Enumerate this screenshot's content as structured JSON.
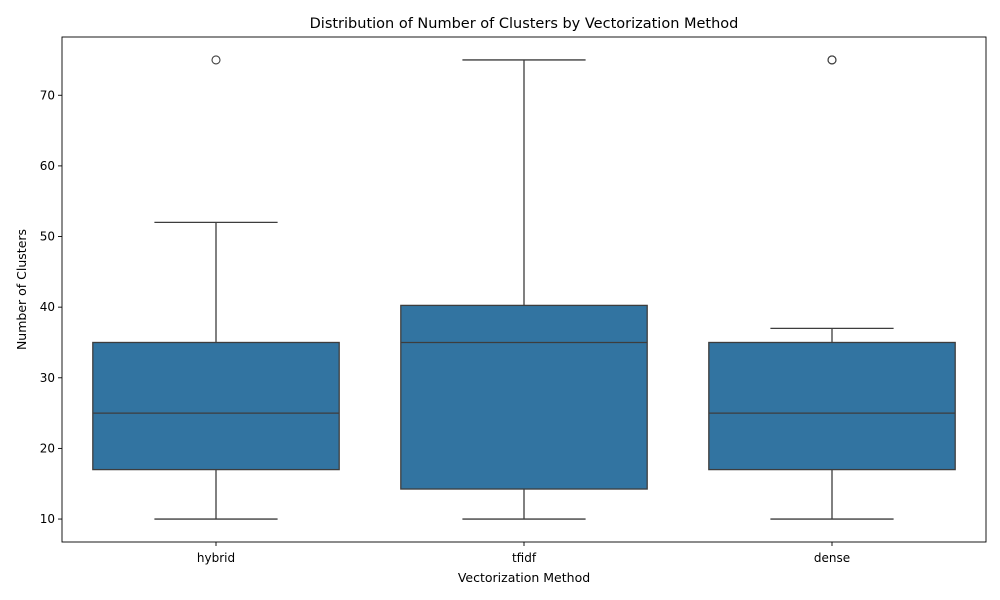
{
  "chart_data": {
    "type": "boxplot",
    "title": "Distribution of Number of Clusters by Vectorization Method",
    "xlabel": "Vectorization Method",
    "ylabel": "Number of Clusters",
    "ylim": [
      6.75,
      78.25
    ],
    "yticks": [
      10,
      20,
      30,
      40,
      50,
      60,
      70
    ],
    "box_color": "#3274a1",
    "line_color": "#3d3d3d",
    "grid": false,
    "categories": [
      "hybrid",
      "tfidf",
      "dense"
    ],
    "boxes": [
      {
        "category": "hybrid",
        "whisker_low": 10,
        "q1": 17,
        "median": 25,
        "q3": 35,
        "whisker_high": 52,
        "outliers": [
          75
        ]
      },
      {
        "category": "tfidf",
        "whisker_low": 10,
        "q1": 14.25,
        "median": 35,
        "q3": 40.25,
        "whisker_high": 75,
        "outliers": []
      },
      {
        "category": "dense",
        "whisker_low": 10,
        "q1": 17,
        "median": 25,
        "q3": 35,
        "whisker_high": 37,
        "outliers": [
          75,
          75
        ]
      }
    ]
  }
}
